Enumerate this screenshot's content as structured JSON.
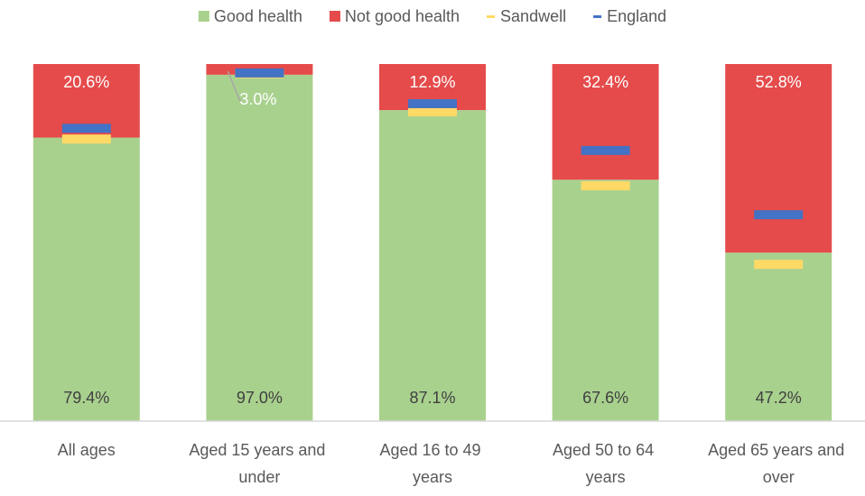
{
  "chart_data": {
    "type": "bar",
    "stacked": true,
    "categories": [
      "All ages",
      "Aged 15 years and under",
      "Aged 16 to 49 years",
      "Aged 50 to 64 years",
      "Aged 65 years and over"
    ],
    "series": [
      {
        "name": "Good health",
        "color": "#a9d18e",
        "type": "bar",
        "values": [
          79.4,
          97.0,
          87.1,
          67.6,
          47.2
        ],
        "value_labels": [
          "79.4%",
          "97.0%",
          "87.1%",
          "67.6%",
          "47.2%"
        ]
      },
      {
        "name": "Not good health",
        "color": "#e54b4b",
        "type": "bar",
        "values": [
          20.6,
          3.0,
          12.9,
          32.4,
          52.8
        ],
        "value_labels": [
          "20.6%",
          "3.0%",
          "12.9%",
          "32.4%",
          "52.8%"
        ]
      },
      {
        "name": "Sandwell",
        "color": "#ffd966",
        "type": "marker",
        "values": [
          79.0,
          97.3,
          86.6,
          65.9,
          43.9
        ]
      },
      {
        "name": "England",
        "color": "#4472c4",
        "type": "marker",
        "values": [
          82.0,
          97.5,
          88.9,
          75.8,
          57.8
        ]
      }
    ],
    "ylim": [
      0,
      100
    ],
    "legend": "top"
  }
}
